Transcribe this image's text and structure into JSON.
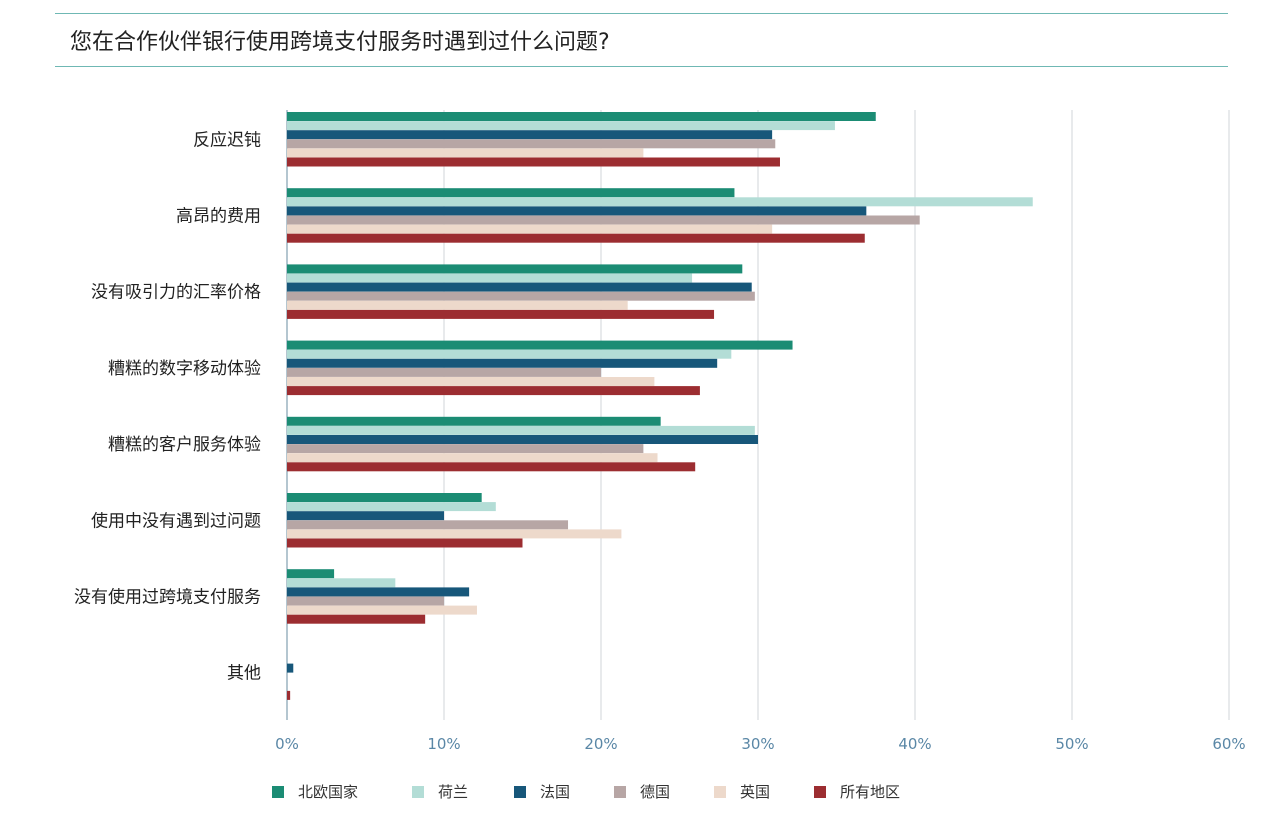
{
  "title": "您在合作伙伴银行使用跨境支付服务时遇到过什么问题?",
  "chart_data": {
    "type": "bar",
    "orientation": "horizontal",
    "categories": [
      "反应迟钝",
      "高昂的费用",
      "没有吸引力的汇率价格",
      "糟糕的数字移动体验",
      "糟糕的客户服务体验",
      "使用中没有遇到过问题",
      "没有使用过跨境支付服务",
      "其他"
    ],
    "series": [
      {
        "name": "北欧国家",
        "color": "#1b8c74",
        "values": [
          37.5,
          28.5,
          29.0,
          32.2,
          23.8,
          12.4,
          3.0,
          0
        ]
      },
      {
        "name": "荷兰",
        "color": "#b3ddd6",
        "values": [
          34.9,
          47.5,
          25.8,
          28.3,
          29.8,
          13.3,
          6.9,
          0
        ]
      },
      {
        "name": "法国",
        "color": "#17577a",
        "values": [
          30.9,
          36.9,
          29.6,
          27.4,
          30.0,
          10.0,
          11.6,
          0.4
        ]
      },
      {
        "name": "德国",
        "color": "#b7a6a5",
        "values": [
          31.1,
          40.3,
          29.8,
          20.0,
          22.7,
          17.9,
          10.0,
          0
        ]
      },
      {
        "name": "英国",
        "color": "#edd9cb",
        "values": [
          22.7,
          30.9,
          21.7,
          23.4,
          23.6,
          21.3,
          12.1,
          0
        ]
      },
      {
        "name": "所有地区",
        "color": "#9c2d31",
        "values": [
          31.4,
          36.8,
          27.2,
          26.3,
          26.0,
          15.0,
          8.8,
          0.2
        ]
      }
    ],
    "xlim": [
      0,
      60
    ],
    "xticks": [
      "0%",
      "10%",
      "20%",
      "30%",
      "40%",
      "50%",
      "60%"
    ],
    "grid": true,
    "legend_position": "bottom"
  }
}
